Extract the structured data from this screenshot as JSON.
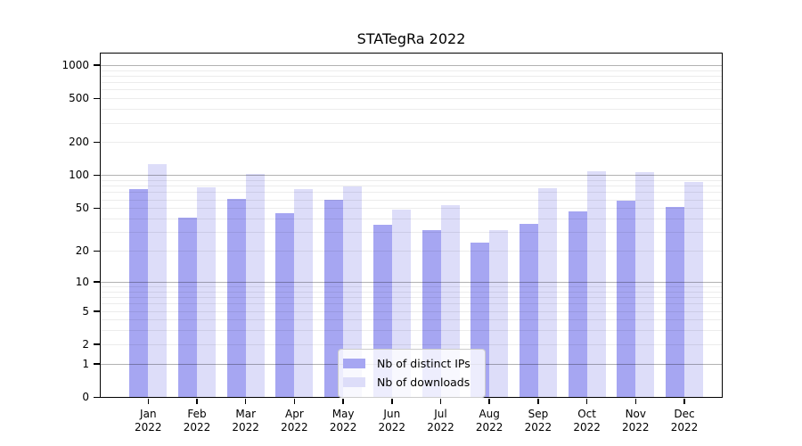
{
  "figure": {
    "title": "STATegRa 2022"
  },
  "chart_data": {
    "type": "bar",
    "title": "STATegRa 2022",
    "categories": [
      "Jan 2022",
      "Feb 2022",
      "Mar 2022",
      "Apr 2022",
      "May 2022",
      "Jun 2022",
      "Jul 2022",
      "Aug 2022",
      "Sep 2022",
      "Oct 2022",
      "Nov 2022",
      "Dec 2022"
    ],
    "series": [
      {
        "name": "Nb of distinct IPs",
        "color": "#a6a6f2",
        "values": [
          74,
          41,
          61,
          45,
          60,
          35,
          31,
          24,
          36,
          47,
          59,
          51
        ]
      },
      {
        "name": "Nb of downloads",
        "color": "#ddddf9",
        "values": [
          126,
          77,
          102,
          75,
          79,
          48,
          53,
          31,
          76,
          109,
          107,
          87
        ]
      }
    ],
    "xlabel": "",
    "ylabel": "",
    "y_axis": {
      "scale": "log10(value+1)",
      "tick_labels": [
        "1000",
        "500",
        "200",
        "100",
        "50",
        "20",
        "10",
        "5",
        "2",
        "1",
        "0"
      ],
      "tick_values": [
        1000,
        500,
        200,
        100,
        50,
        20,
        10,
        5,
        2,
        1,
        0
      ],
      "ylim": [
        0,
        1270
      ]
    },
    "grid": "horizontal, minor light + major dark at decades 1/10/100/1000, drawn over bars",
    "legend": {
      "position": "inside bottom-center",
      "entries": [
        "Nb of distinct IPs",
        "Nb of downloads"
      ]
    }
  },
  "colors": {
    "bar_distinct_ips": "#a6a6f2",
    "bar_downloads": "#ddddf9",
    "grid_major": "#b3b3b3",
    "grid_minor": "#ebebeb",
    "axis": "#000000",
    "legend_border": "#cccccc",
    "background": "#ffffff"
  }
}
